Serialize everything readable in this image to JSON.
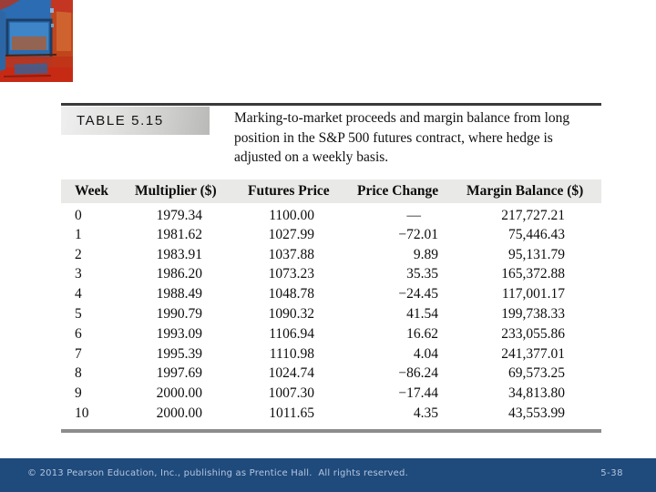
{
  "artwork": {
    "description": "abstract painting thumbnail, blue and red brushstrokes",
    "palette": [
      "#2b6cb2",
      "#c0451c",
      "#c62a15",
      "#1d3f66",
      "#3d85c6",
      "#cf6633"
    ]
  },
  "table": {
    "label": "TABLE 5.15",
    "caption": "Marking-to-market proceeds and margin balance from long position in the S&P 500 futures contract, where hedge is adjusted on a weekly basis.",
    "columns": [
      "Week",
      "Multiplier ($)",
      "Futures Price",
      "Price Change",
      "Margin Balance ($)"
    ],
    "rows": [
      [
        "0",
        "1979.34",
        "1100.00",
        "—",
        "217,727.21"
      ],
      [
        "1",
        "1981.62",
        "1027.99",
        "−72.01",
        "75,446.43"
      ],
      [
        "2",
        "1983.91",
        "1037.88",
        "9.89",
        "95,131.79"
      ],
      [
        "3",
        "1986.20",
        "1073.23",
        "35.35",
        "165,372.88"
      ],
      [
        "4",
        "1988.49",
        "1048.78",
        "−24.45",
        "117,001.17"
      ],
      [
        "5",
        "1990.79",
        "1090.32",
        "41.54",
        "199,738.33"
      ],
      [
        "6",
        "1993.09",
        "1106.94",
        "16.62",
        "233,055.86"
      ],
      [
        "7",
        "1995.39",
        "1110.98",
        "4.04",
        "241,377.01"
      ],
      [
        "8",
        "1997.69",
        "1024.74",
        "−86.24",
        "69,573.25"
      ],
      [
        "9",
        "2000.00",
        "1007.30",
        "−17.44",
        "34,813.80"
      ],
      [
        "10",
        "2000.00",
        "1011.65",
        "4.35",
        "43,553.99"
      ]
    ],
    "header_row_background": "#e9e9e7",
    "top_rule_color": "#3a3a3a",
    "bottom_rule_color": "#8c8c8c"
  },
  "footer": {
    "copyright": "© 2013 Pearson Education, Inc., publishing as Prentice Hall.  All rights reserved.",
    "page_number": "5-38",
    "background_color": "#1f4a7c",
    "text_color": "#b3c6de"
  }
}
